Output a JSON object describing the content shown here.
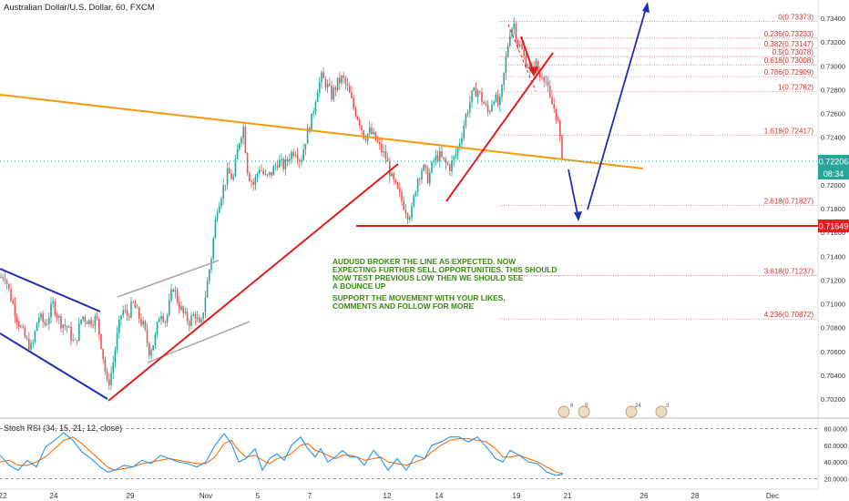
{
  "header": {
    "title": "Australian Dollar/U.S. Dollar, 60, FXCM"
  },
  "price_axis": {
    "ticks": [
      "0.73400",
      "0.73200",
      "0.73000",
      "0.72800",
      "0.72600",
      "0.72400",
      "0.72200",
      "0.72000",
      "0.71800",
      "0.71600",
      "0.71400",
      "0.71200",
      "0.71000",
      "0.70800",
      "0.70600",
      "0.70400",
      "0.70200"
    ],
    "current_price": "0.72206",
    "countdown": "08:34",
    "support_price": "0.71649"
  },
  "time_axis": {
    "labels": [
      "22",
      "24",
      "29",
      "Nov",
      "5",
      "7",
      "12",
      "14",
      "19",
      "21",
      "26",
      "28",
      "Dec"
    ]
  },
  "fibonacci": {
    "levels": [
      "0(0.73373)",
      "0.236(0.73233)",
      "0.382(0.73147)",
      "0.5(0.73078)",
      "0.618(0.73008)",
      "0.786(0.72909)",
      "1(0.72782)",
      "1.618(0.72417)",
      "2.618(0.71827)",
      "3.618(0.71237)",
      "4.236(0.70872)"
    ]
  },
  "annotation": {
    "line1": "AUDUSD BROKER THE LINE AS EXPECTED. NOW",
    "line2": "EXPECTING FURTHER SELL OPPORTUNITIES. THIS SHOULD",
    "line3": "NOW TEST PREVIOUS LOW THEN WE SHOULD SEE",
    "line4": "A BOUNCE UP",
    "line5": "SUPPORT THE MOVEMENT WITH YOUR LIKES,",
    "line6": "COMMENTS AND FOLLOW FOR MORE"
  },
  "events": [
    "8",
    "5",
    "24",
    "3"
  ],
  "oscillator": {
    "title": "Stoch RSI (34, 15, 21, 12, close)",
    "ticks": [
      "80.0000",
      "60.0000",
      "40.0000",
      "20.0000"
    ]
  },
  "colors": {
    "up": "#26a69a",
    "down": "#ef5350",
    "orange_line": "#f59b0b",
    "red_line": "#e11d1d",
    "blue_line": "#1d2db8",
    "green_text": "#3a8a14",
    "k_line": "#2196f3",
    "d_line": "#ff6d00"
  },
  "chart_data": {
    "type": "candlestick",
    "symbol": "AUDUSD",
    "timeframe": "60",
    "ylim": [
      0.7015,
      0.735
    ],
    "osc_ylim": [
      15,
      85
    ],
    "x_ticks": [
      {
        "label": "22",
        "x": 3
      },
      {
        "label": "24",
        "x": 59
      },
      {
        "label": "29",
        "x": 143
      },
      {
        "label": "Nov",
        "x": 226
      },
      {
        "label": "5",
        "x": 283
      },
      {
        "label": "7",
        "x": 340
      },
      {
        "label": "12",
        "x": 425
      },
      {
        "label": "14",
        "x": 482
      },
      {
        "label": "19",
        "x": 567
      },
      {
        "label": "21",
        "x": 623
      },
      {
        "label": "26",
        "x": 707
      },
      {
        "label": "28",
        "x": 763
      },
      {
        "label": "Dec",
        "x": 848
      }
    ],
    "price_path": [
      [
        0,
        0.7122
      ],
      [
        5,
        0.7125
      ],
      [
        12,
        0.7105
      ],
      [
        20,
        0.7085
      ],
      [
        28,
        0.707
      ],
      [
        35,
        0.7062
      ],
      [
        42,
        0.709
      ],
      [
        50,
        0.7082
      ],
      [
        58,
        0.71
      ],
      [
        66,
        0.7085
      ],
      [
        74,
        0.708
      ],
      [
        82,
        0.7065
      ],
      [
        90,
        0.709
      ],
      [
        98,
        0.7085
      ],
      [
        106,
        0.7088
      ],
      [
        112,
        0.7062
      ],
      [
        118,
        0.703
      ],
      [
        123,
        0.7045
      ],
      [
        128,
        0.707
      ],
      [
        134,
        0.7095
      ],
      [
        140,
        0.709
      ],
      [
        146,
        0.71
      ],
      [
        152,
        0.709
      ],
      [
        158,
        0.708
      ],
      [
        164,
        0.706
      ],
      [
        170,
        0.707
      ],
      [
        176,
        0.7095
      ],
      [
        182,
        0.7085
      ],
      [
        190,
        0.7115
      ],
      [
        196,
        0.71
      ],
      [
        202,
        0.709
      ],
      [
        208,
        0.7085
      ],
      [
        214,
        0.7092
      ],
      [
        220,
        0.7078
      ],
      [
        226,
        0.711
      ],
      [
        232,
        0.714
      ],
      [
        238,
        0.718
      ],
      [
        244,
        0.7195
      ],
      [
        250,
        0.721
      ],
      [
        256,
        0.7205
      ],
      [
        262,
        0.7235
      ],
      [
        267,
        0.725
      ],
      [
        272,
        0.721
      ],
      [
        278,
        0.72
      ],
      [
        285,
        0.7215
      ],
      [
        292,
        0.7205
      ],
      [
        298,
        0.721
      ],
      [
        305,
        0.722
      ],
      [
        312,
        0.7215
      ],
      [
        318,
        0.7225
      ],
      [
        324,
        0.723
      ],
      [
        330,
        0.722
      ],
      [
        336,
        0.724
      ],
      [
        342,
        0.7255
      ],
      [
        348,
        0.728
      ],
      [
        353,
        0.729
      ],
      [
        358,
        0.7285
      ],
      [
        364,
        0.7275
      ],
      [
        370,
        0.7285
      ],
      [
        376,
        0.729
      ],
      [
        382,
        0.728
      ],
      [
        388,
        0.7265
      ],
      [
        394,
        0.7255
      ],
      [
        400,
        0.724
      ],
      [
        406,
        0.7245
      ],
      [
        412,
        0.7238
      ],
      [
        418,
        0.723
      ],
      [
        424,
        0.7222
      ],
      [
        430,
        0.7205
      ],
      [
        436,
        0.7195
      ],
      [
        442,
        0.7185
      ],
      [
        448,
        0.7175
      ],
      [
        452,
        0.7178
      ],
      [
        458,
        0.7205
      ],
      [
        464,
        0.7215
      ],
      [
        470,
        0.7205
      ],
      [
        476,
        0.722
      ],
      [
        482,
        0.7225
      ],
      [
        488,
        0.7218
      ],
      [
        494,
        0.7215
      ],
      [
        500,
        0.7225
      ],
      [
        506,
        0.724
      ],
      [
        512,
        0.726
      ],
      [
        518,
        0.7275
      ],
      [
        524,
        0.728
      ],
      [
        530,
        0.727
      ],
      [
        536,
        0.726
      ],
      [
        542,
        0.7275
      ],
      [
        548,
        0.7265
      ],
      [
        552,
        0.7285
      ],
      [
        556,
        0.731
      ],
      [
        560,
        0.733
      ],
      [
        564,
        0.7336
      ],
      [
        568,
        0.732
      ],
      [
        572,
        0.7315
      ],
      [
        576,
        0.7305
      ],
      [
        580,
        0.73
      ],
      [
        584,
        0.7295
      ],
      [
        588,
        0.7302
      ],
      [
        592,
        0.729
      ],
      [
        596,
        0.7295
      ],
      [
        600,
        0.7285
      ],
      [
        604,
        0.727
      ],
      [
        608,
        0.7265
      ],
      [
        612,
        0.7255
      ],
      [
        615,
        0.7235
      ],
      [
        618,
        0.7222
      ]
    ],
    "stoch_k": [
      [
        0,
        48
      ],
      [
        10,
        36
      ],
      [
        20,
        30
      ],
      [
        30,
        42
      ],
      [
        40,
        34
      ],
      [
        50,
        58
      ],
      [
        60,
        66
      ],
      [
        70,
        75
      ],
      [
        80,
        66
      ],
      [
        90,
        52
      ],
      [
        100,
        44
      ],
      [
        110,
        34
      ],
      [
        118,
        28
      ],
      [
        126,
        30
      ],
      [
        136,
        36
      ],
      [
        146,
        34
      ],
      [
        156,
        42
      ],
      [
        166,
        38
      ],
      [
        176,
        48
      ],
      [
        186,
        44
      ],
      [
        196,
        40
      ],
      [
        206,
        38
      ],
      [
        216,
        34
      ],
      [
        226,
        40
      ],
      [
        236,
        60
      ],
      [
        246,
        74
      ],
      [
        254,
        62
      ],
      [
        262,
        40
      ],
      [
        270,
        44
      ],
      [
        280,
        56
      ],
      [
        288,
        30
      ],
      [
        296,
        44
      ],
      [
        304,
        50
      ],
      [
        312,
        42
      ],
      [
        320,
        60
      ],
      [
        330,
        70
      ],
      [
        338,
        56
      ],
      [
        346,
        46
      ],
      [
        352,
        56
      ],
      [
        360,
        40
      ],
      [
        368,
        46
      ],
      [
        376,
        54
      ],
      [
        384,
        46
      ],
      [
        392,
        46
      ],
      [
        400,
        36
      ],
      [
        410,
        54
      ],
      [
        418,
        44
      ],
      [
        426,
        30
      ],
      [
        436,
        44
      ],
      [
        446,
        30
      ],
      [
        456,
        48
      ],
      [
        466,
        44
      ],
      [
        474,
        60
      ],
      [
        484,
        64
      ],
      [
        494,
        70
      ],
      [
        504,
        70
      ],
      [
        514,
        64
      ],
      [
        524,
        70
      ],
      [
        534,
        58
      ],
      [
        544,
        44
      ],
      [
        552,
        40
      ],
      [
        560,
        54
      ],
      [
        570,
        48
      ],
      [
        580,
        40
      ],
      [
        590,
        38
      ],
      [
        600,
        28
      ],
      [
        610,
        24
      ],
      [
        618,
        25
      ]
    ],
    "stoch_d": [
      [
        0,
        40
      ],
      [
        10,
        42
      ],
      [
        20,
        36
      ],
      [
        30,
        36
      ],
      [
        40,
        40
      ],
      [
        50,
        46
      ],
      [
        60,
        56
      ],
      [
        70,
        66
      ],
      [
        80,
        70
      ],
      [
        90,
        62
      ],
      [
        100,
        52
      ],
      [
        110,
        42
      ],
      [
        118,
        34
      ],
      [
        126,
        30
      ],
      [
        136,
        32
      ],
      [
        146,
        34
      ],
      [
        156,
        38
      ],
      [
        166,
        40
      ],
      [
        176,
        42
      ],
      [
        186,
        44
      ],
      [
        196,
        42
      ],
      [
        206,
        40
      ],
      [
        216,
        38
      ],
      [
        226,
        38
      ],
      [
        236,
        46
      ],
      [
        246,
        62
      ],
      [
        254,
        66
      ],
      [
        262,
        54
      ],
      [
        270,
        46
      ],
      [
        280,
        48
      ],
      [
        288,
        42
      ],
      [
        296,
        38
      ],
      [
        304,
        44
      ],
      [
        312,
        46
      ],
      [
        320,
        50
      ],
      [
        330,
        60
      ],
      [
        338,
        62
      ],
      [
        346,
        54
      ],
      [
        352,
        52
      ],
      [
        360,
        48
      ],
      [
        368,
        44
      ],
      [
        376,
        48
      ],
      [
        384,
        48
      ],
      [
        392,
        46
      ],
      [
        400,
        42
      ],
      [
        410,
        44
      ],
      [
        418,
        46
      ],
      [
        426,
        40
      ],
      [
        436,
        38
      ],
      [
        446,
        36
      ],
      [
        456,
        40
      ],
      [
        466,
        44
      ],
      [
        474,
        52
      ],
      [
        484,
        60
      ],
      [
        494,
        66
      ],
      [
        504,
        68
      ],
      [
        514,
        68
      ],
      [
        524,
        66
      ],
      [
        534,
        64
      ],
      [
        544,
        56
      ],
      [
        552,
        46
      ],
      [
        560,
        46
      ],
      [
        570,
        48
      ],
      [
        580,
        44
      ],
      [
        590,
        40
      ],
      [
        600,
        34
      ],
      [
        610,
        28
      ],
      [
        618,
        26
      ]
    ]
  }
}
